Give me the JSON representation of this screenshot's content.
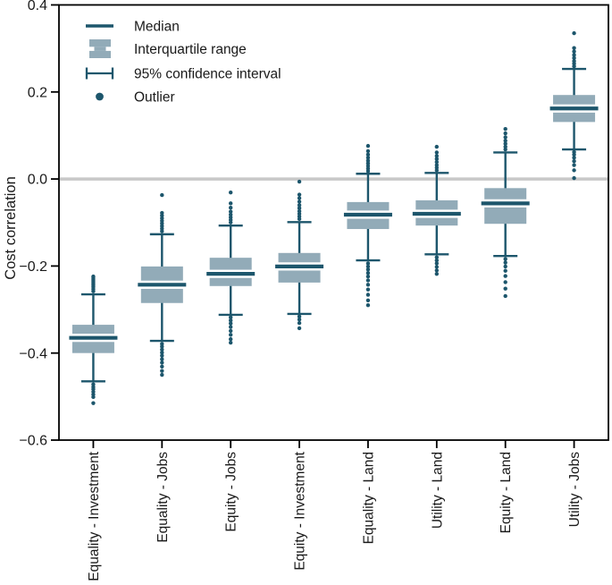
{
  "chart_data": {
    "type": "boxplot",
    "title": "",
    "ylabel": "Cost correlation",
    "ylim": [
      -0.6,
      0.4
    ],
    "yticks": {
      "values": [
        0.4,
        0.2,
        0.0,
        -0.2,
        -0.4,
        -0.6
      ],
      "labels": [
        "0.4",
        "0.2",
        "0.0",
        "−0.2",
        "−0.4",
        "−0.6"
      ]
    },
    "zero_line_value": 0.0,
    "grid": false,
    "legend_position": "upper-left-inside",
    "legend_labels": {
      "0": "Median",
      "1": "Interquartile range",
      "2": "95% confidence interval",
      "3": "Outlier"
    },
    "colors": {
      "box_fill": "#92abb8",
      "line_dark": "#1d566c",
      "zero_line": "#c8c8c8",
      "axis": "#000000",
      "text": "#1a1a1a"
    },
    "categories": [
      "Equality - Investment",
      "Equality - Jobs",
      "Equity - Jobs",
      "Equity - Investment",
      "Equality - Land",
      "Utility - Land",
      "Equity - Land",
      "Utility - Jobs"
    ],
    "boxes": [
      {
        "category": "Equality - Investment",
        "whisker_low": -0.465,
        "q1": -0.4,
        "median": -0.365,
        "q3": -0.335,
        "whisker_high": -0.265,
        "outliers_above": [
          -0.258,
          -0.253,
          -0.248,
          -0.244,
          -0.24,
          -0.236,
          -0.232,
          -0.228,
          -0.224
        ],
        "outliers_below": [
          -0.472,
          -0.478,
          -0.483,
          -0.489,
          -0.495,
          -0.501,
          -0.515
        ]
      },
      {
        "category": "Equality - Jobs",
        "whisker_low": -0.372,
        "q1": -0.285,
        "median": -0.243,
        "q3": -0.201,
        "whisker_high": -0.127,
        "outliers_above": [
          -0.12,
          -0.114,
          -0.108,
          -0.102,
          -0.096,
          -0.09,
          -0.084,
          -0.078,
          -0.037
        ],
        "outliers_below": [
          -0.379,
          -0.385,
          -0.392,
          -0.399,
          -0.406,
          -0.414,
          -0.422,
          -0.431,
          -0.441,
          -0.45
        ]
      },
      {
        "category": "Equity - Jobs",
        "whisker_low": -0.312,
        "q1": -0.246,
        "median": -0.218,
        "q3": -0.181,
        "whisker_high": -0.107,
        "outliers_above": [
          -0.1,
          -0.094,
          -0.088,
          -0.082,
          -0.075,
          -0.066,
          -0.056,
          -0.031
        ],
        "outliers_below": [
          -0.318,
          -0.325,
          -0.332,
          -0.34,
          -0.349,
          -0.358,
          -0.368,
          -0.376
        ]
      },
      {
        "category": "Equity - Investment",
        "whisker_low": -0.31,
        "q1": -0.238,
        "median": -0.201,
        "q3": -0.17,
        "whisker_high": -0.099,
        "outliers_above": [
          -0.092,
          -0.086,
          -0.08,
          -0.074,
          -0.067,
          -0.06,
          -0.052,
          -0.044,
          -0.036,
          -0.006
        ],
        "outliers_below": [
          -0.316,
          -0.323,
          -0.331,
          -0.343
        ]
      },
      {
        "category": "Equality - Land",
        "whisker_low": -0.187,
        "q1": -0.115,
        "median": -0.082,
        "q3": -0.053,
        "whisker_high": 0.012,
        "outliers_above": [
          0.018,
          0.024,
          0.03,
          0.036,
          0.042,
          0.049,
          0.056,
          0.064,
          0.076
        ],
        "outliers_below": [
          -0.194,
          -0.201,
          -0.208,
          -0.216,
          -0.224,
          -0.233,
          -0.243,
          -0.254,
          -0.266,
          -0.279,
          -0.29
        ]
      },
      {
        "category": "Utility - Land",
        "whisker_low": -0.173,
        "q1": -0.107,
        "median": -0.08,
        "q3": -0.049,
        "whisker_high": 0.014,
        "outliers_above": [
          0.02,
          0.026,
          0.032,
          0.039,
          0.046,
          0.053,
          0.061,
          0.074
        ],
        "outliers_below": [
          -0.18,
          -0.187,
          -0.194,
          -0.202,
          -0.21,
          -0.218
        ]
      },
      {
        "category": "Equity - Land",
        "whisker_low": -0.177,
        "q1": -0.103,
        "median": -0.056,
        "q3": -0.021,
        "whisker_high": 0.061,
        "outliers_above": [
          0.068,
          0.074,
          0.081,
          0.088,
          0.096,
          0.105,
          0.115
        ],
        "outliers_below": [
          -0.184,
          -0.192,
          -0.201,
          -0.211,
          -0.223,
          -0.237,
          -0.252,
          -0.269
        ]
      },
      {
        "category": "Utility - Jobs",
        "whisker_low": 0.068,
        "q1": 0.131,
        "median": 0.162,
        "q3": 0.193,
        "whisker_high": 0.253,
        "outliers_above": [
          0.259,
          0.265,
          0.271,
          0.278,
          0.285,
          0.293,
          0.301,
          0.335
        ],
        "outliers_below": [
          0.062,
          0.056,
          0.049,
          0.041,
          0.032,
          0.02,
          0.002
        ]
      }
    ]
  }
}
